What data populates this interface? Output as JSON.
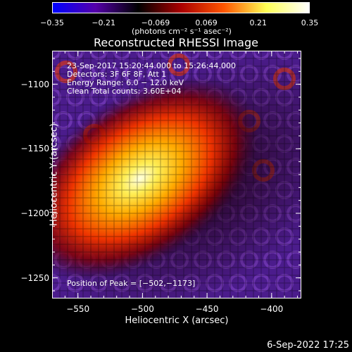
{
  "colorbar": {
    "min": -0.35,
    "max": 0.35,
    "tick_labels": [
      "−0.35",
      "−0.21",
      "−0.069",
      "0.069",
      "0.21",
      "0.35"
    ],
    "tick_values": [
      -0.35,
      -0.21,
      -0.069,
      0.069,
      0.21,
      0.35
    ],
    "units": "(photons cm⁻² s⁻¹ asec⁻²)",
    "colors": [
      "#0000ff",
      "#5500aa",
      "#000000",
      "#aa0000",
      "#ff5500",
      "#ffff55",
      "#ffffff"
    ]
  },
  "title": "Reconstructed RHESSI Image",
  "info": {
    "time": "23-Sep-2017 15:20:44.000 to 15:26:44.000",
    "detectors": "Detectors: 3F 6F 8F, Att 1",
    "energy": "Energy Range: 6.0 − 12.0 keV",
    "clean": "Clean     Total counts: 3.60E+04",
    "peak": "Position of Peak = [−502,−1173]"
  },
  "axes": {
    "xlabel": "Heliocentric X (arcsec)",
    "ylabel": "Heliocentric Y (arcsec)",
    "xlim": [
      -570,
      -377
    ],
    "ylim": [
      -1266,
      -1074
    ],
    "xticks": [
      -550,
      -500,
      -450,
      -400
    ],
    "xtick_labels": [
      "−550",
      "−500",
      "−450",
      "−400"
    ],
    "yticks": [
      -1100,
      -1150,
      -1200,
      -1250
    ],
    "ytick_labels": [
      "−1100",
      "−1150",
      "−1200",
      "−1250"
    ]
  },
  "image": {
    "peak_x": -502,
    "peak_y": -1173
  },
  "timestamp": "6-Sep-2022 17:25"
}
